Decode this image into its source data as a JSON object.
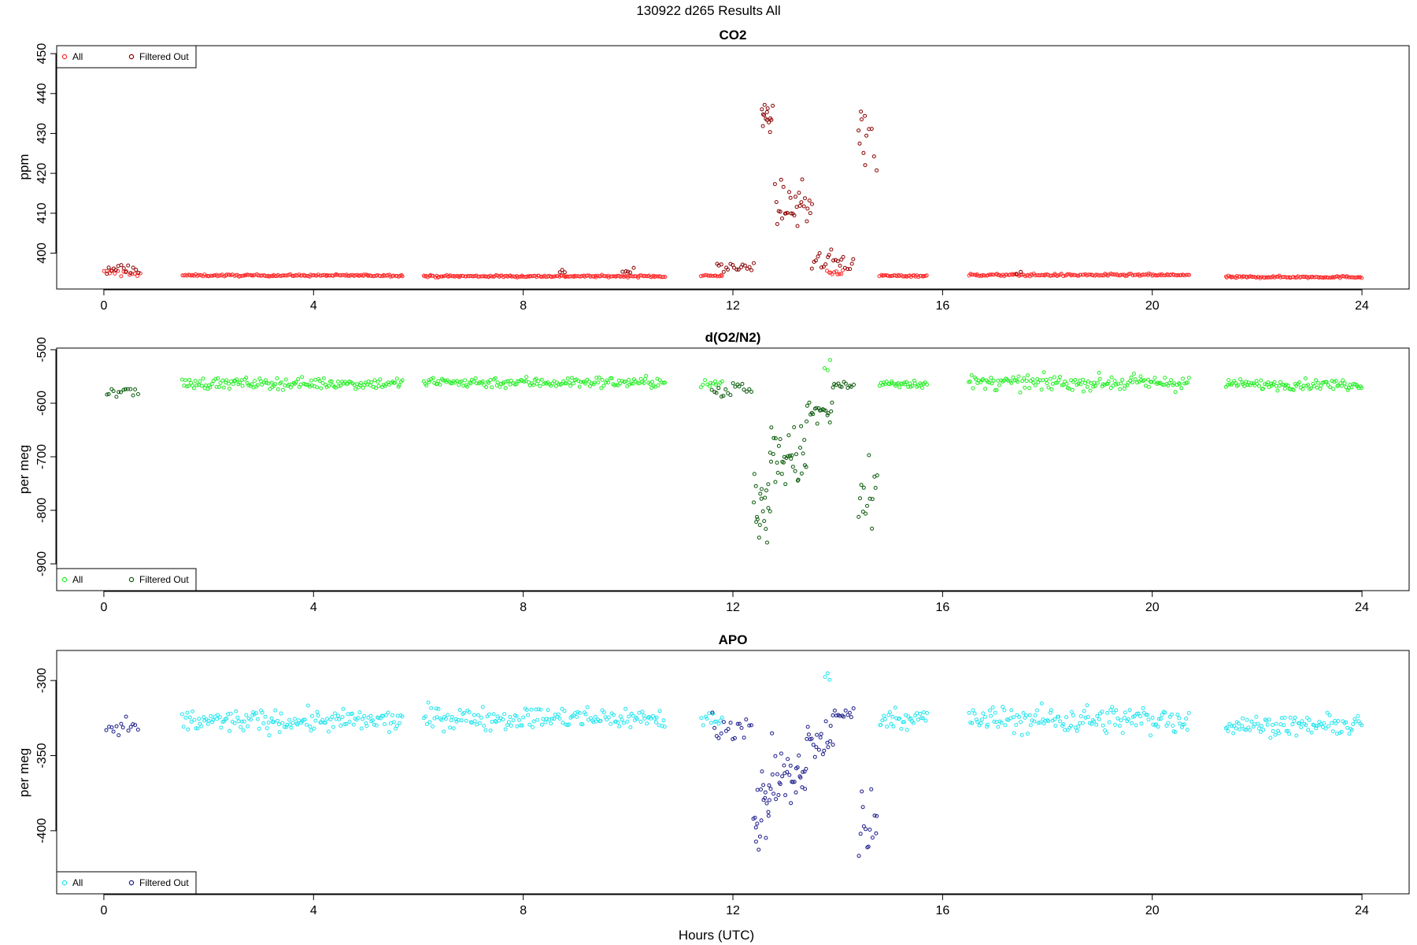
{
  "figure": {
    "title": "130922   d265   Results All",
    "xlabel": "Hours (UTC)"
  },
  "chart_data": [
    {
      "type": "scatter",
      "title": "CO2",
      "xlabel": "",
      "ylabel": "ppm",
      "xlim": [
        -0.9,
        24.9
      ],
      "ylim": [
        391,
        452
      ],
      "xticks": [
        0,
        4,
        8,
        12,
        16,
        20,
        24
      ],
      "yticks": [
        400,
        410,
        420,
        430,
        440,
        450
      ],
      "grid": false,
      "legend": {
        "placement": "top-left",
        "entries": [
          "All",
          "Filtered Out"
        ]
      },
      "colors": {
        "all": "#ff2a2a",
        "filtered": "#8b0000"
      },
      "series": [
        {
          "name": "All",
          "kind": "all",
          "segments": [
            {
              "x0": 0.0,
              "x1": 0.7,
              "base": 395.0,
              "noise": 0.9,
              "n": 14
            },
            {
              "x0": 1.5,
              "x1": 5.7,
              "base": 394.4,
              "noise": 0.25,
              "n": 150
            },
            {
              "x0": 6.1,
              "x1": 10.7,
              "base": 394.2,
              "noise": 0.25,
              "n": 170
            },
            {
              "x0": 11.4,
              "x1": 11.8,
              "base": 394.3,
              "noise": 0.3,
              "n": 14
            },
            {
              "x0": 13.8,
              "x1": 14.1,
              "base": 395.2,
              "noise": 0.6,
              "n": 10
            },
            {
              "x0": 14.8,
              "x1": 15.7,
              "base": 394.3,
              "noise": 0.25,
              "n": 34
            },
            {
              "x0": 16.5,
              "x1": 20.7,
              "base": 394.5,
              "noise": 0.3,
              "n": 150
            },
            {
              "x0": 21.4,
              "x1": 24.0,
              "base": 394.0,
              "noise": 0.25,
              "n": 95
            }
          ]
        },
        {
          "name": "Filtered Out",
          "kind": "filtered",
          "segments": [
            {
              "x0": 0.05,
              "x1": 0.65,
              "base": 396.0,
              "noise": 1.3,
              "n": 14
            },
            {
              "x0": 8.7,
              "x1": 8.8,
              "base": 395.2,
              "noise": 0.5,
              "n": 3
            },
            {
              "x0": 9.9,
              "x1": 10.1,
              "base": 395.5,
              "noise": 0.8,
              "n": 5
            },
            {
              "x0": 11.7,
              "x1": 12.4,
              "base": 396.5,
              "noise": 1.6,
              "n": 18
            },
            {
              "x0": 12.55,
              "x1": 12.75,
              "base": 434.0,
              "noise": 3.0,
              "n": 14
            },
            {
              "x0": 12.8,
              "x1": 13.5,
              "base": 412.0,
              "noise": 5.0,
              "n": 30
            },
            {
              "x0": 13.5,
              "x1": 14.3,
              "base": 398.0,
              "noise": 2.5,
              "n": 22
            },
            {
              "x0": 14.4,
              "x1": 14.55,
              "base": 430.0,
              "noise": 8.0,
              "n": 8
            },
            {
              "x0": 14.6,
              "x1": 14.75,
              "base": 425.0,
              "noise": 12.0,
              "n": 4
            },
            {
              "x0": 17.4,
              "x1": 17.5,
              "base": 395.0,
              "noise": 0.4,
              "n": 2
            }
          ]
        }
      ]
    },
    {
      "type": "scatter",
      "title": "d(O2/N2)",
      "xlabel": "",
      "ylabel": "per meg",
      "xlim": [
        -0.9,
        24.9
      ],
      "ylim": [
        -950,
        -497
      ],
      "xticks": [
        0,
        4,
        8,
        12,
        16,
        20,
        24
      ],
      "yticks": [
        -500,
        -600,
        -700,
        -800,
        -900
      ],
      "grid": false,
      "legend": {
        "placement": "bottom-left",
        "entries": [
          "All",
          "Filtered Out"
        ]
      },
      "colors": {
        "all": "#22ee22",
        "filtered": "#0a5a0a"
      },
      "series": [
        {
          "name": "All",
          "kind": "all",
          "segments": [
            {
              "x0": 1.5,
              "x1": 5.7,
              "base": -563,
              "noise": 10,
              "n": 150
            },
            {
              "x0": 6.1,
              "x1": 10.7,
              "base": -561,
              "noise": 10,
              "n": 160
            },
            {
              "x0": 11.4,
              "x1": 11.8,
              "base": -565,
              "noise": 9,
              "n": 12
            },
            {
              "x0": 13.75,
              "x1": 13.85,
              "base": -530,
              "noise": 15,
              "n": 3
            },
            {
              "x0": 14.8,
              "x1": 15.7,
              "base": -563,
              "noise": 8,
              "n": 34
            },
            {
              "x0": 16.5,
              "x1": 20.7,
              "base": -562,
              "noise": 13,
              "n": 150
            },
            {
              "x0": 21.4,
              "x1": 24.0,
              "base": -565,
              "noise": 9,
              "n": 95
            }
          ]
        },
        {
          "name": "Filtered Out",
          "kind": "filtered",
          "segments": [
            {
              "x0": 0.05,
              "x1": 0.65,
              "base": -577,
              "noise": 9,
              "n": 14
            },
            {
              "x0": 11.6,
              "x1": 12.35,
              "base": -575,
              "noise": 15,
              "n": 18
            },
            {
              "x0": 12.4,
              "x1": 12.7,
              "base": -790,
              "noise": 70,
              "n": 20
            },
            {
              "x0": 12.7,
              "x1": 13.4,
              "base": -700,
              "noise": 55,
              "n": 35
            },
            {
              "x0": 13.4,
              "x1": 13.9,
              "base": -620,
              "noise": 30,
              "n": 20
            },
            {
              "x0": 13.9,
              "x1": 14.3,
              "base": -567,
              "noise": 9,
              "n": 12
            },
            {
              "x0": 14.4,
              "x1": 14.75,
              "base": -800,
              "noise": 80,
              "n": 14
            }
          ]
        }
      ]
    },
    {
      "type": "scatter",
      "title": "APO",
      "xlabel": "Hours (UTC)",
      "ylabel": "per meg",
      "xlim": [
        -0.9,
        24.9
      ],
      "ylim": [
        -442,
        -280
      ],
      "xticks": [
        0,
        4,
        8,
        12,
        16,
        20,
        24
      ],
      "yticks": [
        -300,
        -350,
        -400
      ],
      "grid": false,
      "legend": {
        "placement": "bottom-left",
        "entries": [
          "All",
          "Filtered Out"
        ]
      },
      "colors": {
        "all": "#22e5ee",
        "filtered": "#1c1c8c"
      },
      "series": [
        {
          "name": "All",
          "kind": "all",
          "segments": [
            {
              "x0": 1.5,
              "x1": 5.7,
              "base": -327,
              "noise": 7,
              "n": 150
            },
            {
              "x0": 6.1,
              "x1": 10.7,
              "base": -325,
              "noise": 7,
              "n": 160
            },
            {
              "x0": 11.4,
              "x1": 11.8,
              "base": -327,
              "noise": 6,
              "n": 12
            },
            {
              "x0": 13.75,
              "x1": 13.85,
              "base": -300,
              "noise": 12,
              "n": 3
            },
            {
              "x0": 14.8,
              "x1": 15.7,
              "base": -325,
              "noise": 6,
              "n": 34
            },
            {
              "x0": 16.5,
              "x1": 20.7,
              "base": -326,
              "noise": 9,
              "n": 150
            },
            {
              "x0": 21.4,
              "x1": 24.0,
              "base": -330,
              "noise": 6,
              "n": 95
            }
          ]
        },
        {
          "name": "Filtered Out",
          "kind": "filtered",
          "segments": [
            {
              "x0": 0.05,
              "x1": 0.65,
              "base": -332,
              "noise": 6,
              "n": 14
            },
            {
              "x0": 11.6,
              "x1": 12.35,
              "base": -330,
              "noise": 10,
              "n": 18
            },
            {
              "x0": 12.4,
              "x1": 12.7,
              "base": -385,
              "noise": 25,
              "n": 20
            },
            {
              "x0": 12.7,
              "x1": 13.4,
              "base": -365,
              "noise": 20,
              "n": 35
            },
            {
              "x0": 13.4,
              "x1": 13.9,
              "base": -340,
              "noise": 12,
              "n": 20
            },
            {
              "x0": 13.9,
              "x1": 14.3,
              "base": -322,
              "noise": 5,
              "n": 12
            },
            {
              "x0": 14.4,
              "x1": 14.75,
              "base": -395,
              "noise": 20,
              "n": 14
            }
          ]
        }
      ]
    }
  ]
}
